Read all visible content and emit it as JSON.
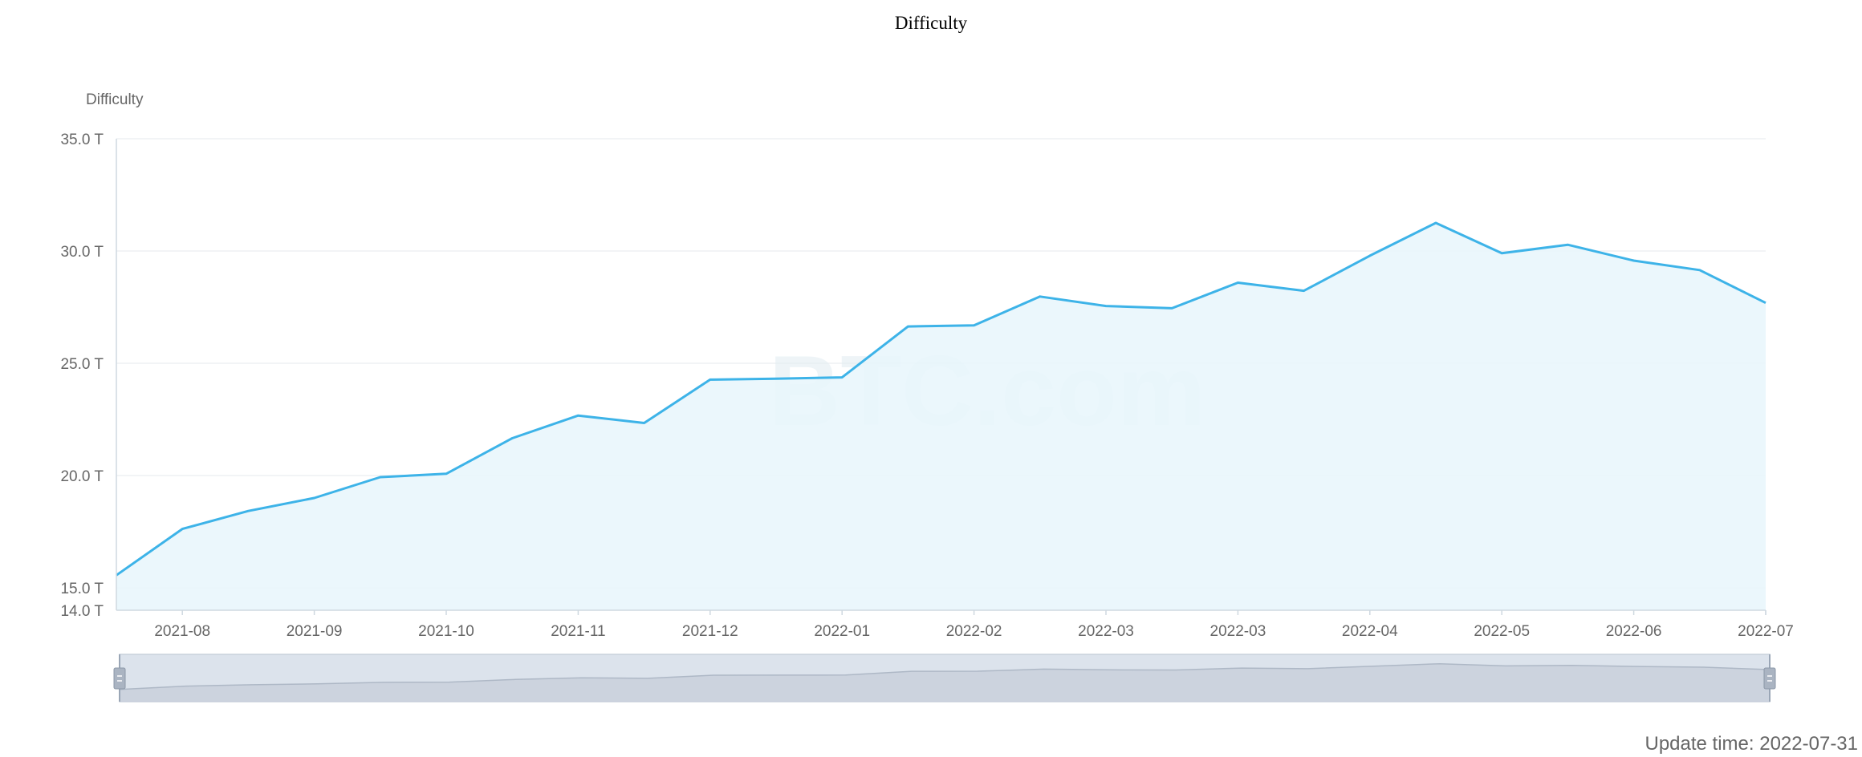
{
  "chart_data": {
    "type": "area",
    "title": "Difficulty",
    "ylabel": "Difficulty",
    "xlabel": "",
    "ylim": [
      14.0,
      35.0
    ],
    "y_ticks": [
      14.0,
      15.0,
      20.0,
      25.0,
      30.0,
      35.0
    ],
    "y_tick_labels": [
      "14.0 T",
      "15.0 T",
      "20.0 T",
      "25.0 T",
      "30.0 T",
      "35.0 T"
    ],
    "x_tick_labels": [
      "2021-08",
      "2021-09",
      "2021-10",
      "2021-11",
      "2021-12",
      "2022-01",
      "2022-02",
      "2022-03",
      "2022-03",
      "2022-04",
      "2022-05",
      "2022-06",
      "2022-07"
    ],
    "series": [
      {
        "values": [
          15.56,
          17.62,
          18.42,
          19.0,
          19.93,
          20.08,
          21.66,
          22.67,
          22.34,
          24.27,
          24.31,
          24.37,
          26.64,
          26.69,
          27.97,
          27.55,
          27.45,
          28.59,
          28.23,
          29.79,
          31.25,
          29.9,
          30.28,
          29.57,
          29.15,
          27.69
        ]
      }
    ],
    "grid": true,
    "watermark": "BTC.com",
    "colors": {
      "line": "#3db3e8",
      "area": "#e8f6fc",
      "grid": "#eef1f4",
      "axis": "#cfd8e0"
    },
    "data_zoom": true
  },
  "footer": {
    "update_time": "Update time: 2022-07-31"
  }
}
